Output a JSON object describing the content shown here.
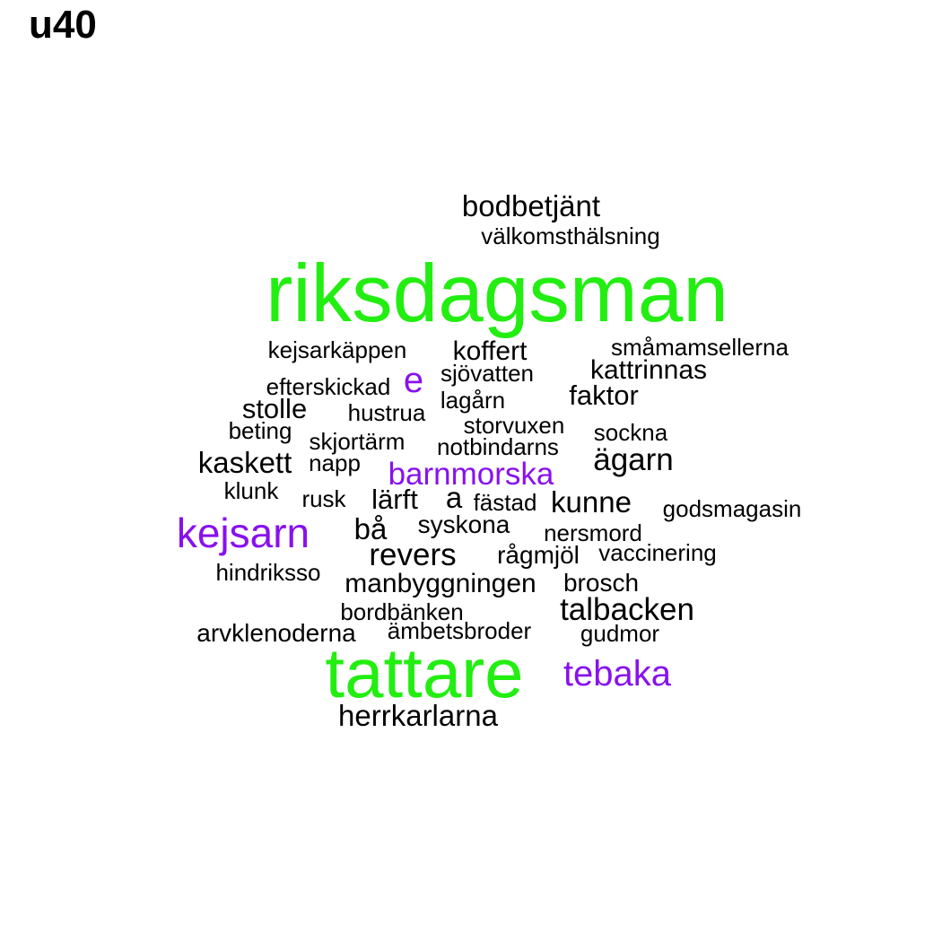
{
  "panel_title": "u40",
  "chart_data": {
    "type": "wordcloud",
    "colors": {
      "black": "#000000",
      "green": "#22ee11",
      "purple": "#8811ee"
    },
    "words": [
      {
        "text": "riksdagsman",
        "color": "green"
      },
      {
        "text": "tattare",
        "color": "green"
      },
      {
        "text": "kejsarn",
        "color": "purple"
      },
      {
        "text": "tebaka",
        "color": "purple"
      },
      {
        "text": "barnmorska",
        "color": "purple"
      },
      {
        "text": "e",
        "color": "purple"
      },
      {
        "text": "bodbetjänt",
        "color": "black"
      },
      {
        "text": "välkomsthälsning",
        "color": "black"
      },
      {
        "text": "kejsarkäppen",
        "color": "black"
      },
      {
        "text": "koffert",
        "color": "black"
      },
      {
        "text": "småmamsellerna",
        "color": "black"
      },
      {
        "text": "kattrinnas",
        "color": "black"
      },
      {
        "text": "efterskickad",
        "color": "black"
      },
      {
        "text": "sjövatten",
        "color": "black"
      },
      {
        "text": "faktor",
        "color": "black"
      },
      {
        "text": "stolle",
        "color": "black"
      },
      {
        "text": "lagårn",
        "color": "black"
      },
      {
        "text": "hustrua",
        "color": "black"
      },
      {
        "text": "storvuxen",
        "color": "black"
      },
      {
        "text": "beting",
        "color": "black"
      },
      {
        "text": "sockna",
        "color": "black"
      },
      {
        "text": "skjortärm",
        "color": "black"
      },
      {
        "text": "notbindarns",
        "color": "black"
      },
      {
        "text": "kaskett",
        "color": "black"
      },
      {
        "text": "napp",
        "color": "black"
      },
      {
        "text": "ägarn",
        "color": "black"
      },
      {
        "text": "klunk",
        "color": "black"
      },
      {
        "text": "a",
        "color": "black"
      },
      {
        "text": "rusk",
        "color": "black"
      },
      {
        "text": "lärft",
        "color": "black"
      },
      {
        "text": "fästad",
        "color": "black"
      },
      {
        "text": "kunne",
        "color": "black"
      },
      {
        "text": "godsmagasin",
        "color": "black"
      },
      {
        "text": "syskona",
        "color": "black"
      },
      {
        "text": "bå",
        "color": "black"
      },
      {
        "text": "nersmord",
        "color": "black"
      },
      {
        "text": "revers",
        "color": "black"
      },
      {
        "text": "rågmjöl",
        "color": "black"
      },
      {
        "text": "vaccinering",
        "color": "black"
      },
      {
        "text": "hindriksso",
        "color": "black"
      },
      {
        "text": "manbyggningen",
        "color": "black"
      },
      {
        "text": "brosch",
        "color": "black"
      },
      {
        "text": "talbacken",
        "color": "black"
      },
      {
        "text": "bordbänken",
        "color": "black"
      },
      {
        "text": "arvklenoderna",
        "color": "black"
      },
      {
        "text": "ämbetsbroder",
        "color": "black"
      },
      {
        "text": "gudmor",
        "color": "black"
      },
      {
        "text": "herrkarlarna",
        "color": "black"
      }
    ]
  }
}
